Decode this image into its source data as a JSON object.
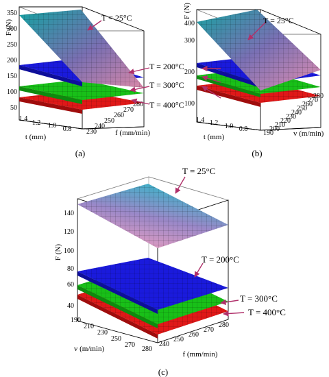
{
  "figure": {
    "panels": [
      {
        "id": "a",
        "caption": "(a)",
        "zlabel": "F (N)",
        "xlabel": "t (mm)",
        "ylabel": "f (mm/min)",
        "zticks": [
          "50",
          "100",
          "150",
          "200",
          "250",
          "300",
          "350"
        ],
        "xticks": [
          "1.4",
          "1.2",
          "1.0",
          "0.8"
        ],
        "yticks": [
          "230",
          "240",
          "250",
          "260",
          "270",
          "280"
        ],
        "annotations": [
          "T = 25°C",
          "T = 200°C",
          "T = 300°C",
          "T = 400°C"
        ]
      },
      {
        "id": "b",
        "caption": "(b)",
        "zlabel": "F (N)",
        "xlabel": "t (mm)",
        "ylabel": "v (m/min)",
        "zticks": [
          "100",
          "200",
          "300",
          "400"
        ],
        "xticks": [
          "1.4",
          "1.2",
          "1.0",
          "0.8"
        ],
        "yticks": [
          "190",
          "200",
          "210",
          "220",
          "230",
          "240",
          "250",
          "260",
          "270",
          "280"
        ],
        "annotations": [
          "T = 25°C",
          "T = 200°C",
          "T = 300°C",
          "T = 400°C"
        ]
      },
      {
        "id": "c",
        "caption": "(c)",
        "zlabel": "F (N)",
        "xlabel": "v (m/min)",
        "ylabel": "f (mm/min)",
        "zticks": [
          "40",
          "60",
          "80",
          "100",
          "120",
          "140"
        ],
        "xticks": [
          "190",
          "210",
          "230",
          "250",
          "270",
          "280"
        ],
        "yticks": [
          "240",
          "250",
          "260",
          "270",
          "280"
        ],
        "annotations": [
          "T = 25°C",
          "T = 200°C",
          "T = 300°C",
          "T = 400°C"
        ]
      }
    ]
  },
  "colors": {
    "T25_top": "#1fa3a3",
    "T25_mid": "#8a6fb0",
    "T25_bottom": "#e090b0",
    "T200": "#1a1adc",
    "T300": "#18c018",
    "T400": "#e01818",
    "arrow": "#b0306a",
    "mesh": "#101010"
  },
  "chart_data": [
    {
      "type": "surface",
      "panel": "a",
      "x_variable": "t (mm)",
      "x_range": [
        0.8,
        1.4
      ],
      "y_variable": "f (mm/min)",
      "y_range": [
        230,
        280
      ],
      "zlim": [
        50,
        350
      ],
      "series": [
        {
          "name": "T = 25°C",
          "z_at_tmax_fmin": 330,
          "z_at_tmax_fmax": 300,
          "z_at_tmin_fmin": 200,
          "z_at_tmin_fmax": 140
        },
        {
          "name": "T = 200°C",
          "z_at_tmax_fmin": 180,
          "z_at_tmax_fmax": 160,
          "z_at_tmin_fmin": 130,
          "z_at_tmin_fmax": 120
        },
        {
          "name": "T = 300°C",
          "z_at_tmax_fmin": 120,
          "z_at_tmax_fmax": 110,
          "z_at_tmin_fmin": 95,
          "z_at_tmin_fmax": 90
        },
        {
          "name": "T = 400°C",
          "z_at_tmax_fmin": 100,
          "z_at_tmax_fmax": 95,
          "z_at_tmin_fmin": 80,
          "z_at_tmin_fmax": 75
        }
      ]
    },
    {
      "type": "surface",
      "panel": "b",
      "x_variable": "t (mm)",
      "x_range": [
        0.8,
        1.4
      ],
      "y_variable": "v (m/min)",
      "y_range": [
        190,
        280
      ],
      "zlim": [
        50,
        400
      ],
      "series": [
        {
          "name": "T = 25°C",
          "z_at_tmax_vmin": 400,
          "z_at_tmax_vmax": 330,
          "z_at_tmin_vmin": 250,
          "z_at_tmin_vmax": 190
        },
        {
          "name": "T = 200°C",
          "z_at_tmax_vmin": 230,
          "z_at_tmax_vmax": 200,
          "z_at_tmin_vmin": 175,
          "z_at_tmin_vmax": 160
        },
        {
          "name": "T = 300°C",
          "z_at_tmax_vmin": 150,
          "z_at_tmax_vmax": 140,
          "z_at_tmin_vmin": 125,
          "z_at_tmin_vmax": 115
        },
        {
          "name": "T = 400°C",
          "z_at_tmax_vmin": 125,
          "z_at_tmax_vmax": 115,
          "z_at_tmin_vmin": 105,
          "z_at_tmin_vmax": 95
        }
      ]
    },
    {
      "type": "surface",
      "panel": "c",
      "x_variable": "v (m/min)",
      "x_range": [
        190,
        280
      ],
      "y_variable": "f (mm/min)",
      "y_range": [
        240,
        280
      ],
      "zlim": [
        30,
        150
      ],
      "series": [
        {
          "name": "T = 25°C",
          "z_at_vmin_fmin": 140,
          "z_at_vmin_fmax": 135,
          "z_at_vmax_fmin": 105,
          "z_at_vmax_fmax": 100
        },
        {
          "name": "T = 200°C",
          "z_at_vmin_fmin": 72,
          "z_at_vmin_fmax": 70,
          "z_at_vmax_fmin": 62,
          "z_at_vmax_fmax": 60
        },
        {
          "name": "T = 300°C",
          "z_at_vmin_fmin": 55,
          "z_at_vmin_fmax": 53,
          "z_at_vmax_fmin": 45,
          "z_at_vmax_fmax": 43
        },
        {
          "name": "T = 400°C",
          "z_at_vmin_fmin": 47,
          "z_at_vmin_fmax": 45,
          "z_at_vmax_fmin": 38,
          "z_at_vmax_fmax": 36
        }
      ]
    }
  ]
}
